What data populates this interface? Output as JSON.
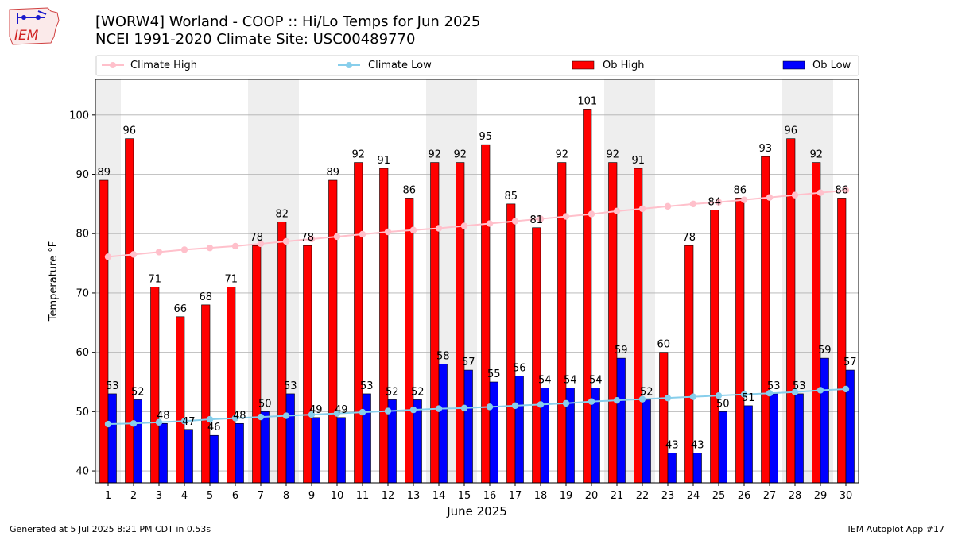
{
  "header": {
    "title_line1": "[WORW4] Worland - COOP :: Hi/Lo Temps for Jun 2025",
    "title_line2": "NCEI 1991-2020 Climate Site: USC00489770",
    "logo_text": "IEM"
  },
  "footer": {
    "left": "Generated at 5 Jul 2025 8:21 PM CDT in 0.53s",
    "right": "IEM Autoplot App #17"
  },
  "colors": {
    "ob_high": "#ff0000",
    "ob_low": "#0000ff",
    "climate_high": "#ffc0cb",
    "climate_low": "#87ceeb",
    "weekend_band": "#eeeeee",
    "grid": "#b0b0b0"
  },
  "chart_data": {
    "type": "bar",
    "xlabel": "June 2025",
    "ylabel": "Temperature °F",
    "ylim": [
      38,
      106
    ],
    "yticks": [
      40,
      50,
      60,
      70,
      80,
      90,
      100
    ],
    "grid": "horizontal",
    "legend_position": "top, above plot",
    "categories": [
      1,
      2,
      3,
      4,
      5,
      6,
      7,
      8,
      9,
      10,
      11,
      12,
      13,
      14,
      15,
      16,
      17,
      18,
      19,
      20,
      21,
      22,
      23,
      24,
      25,
      26,
      27,
      28,
      29,
      30
    ],
    "weekend_days": [
      1,
      7,
      8,
      14,
      15,
      21,
      22,
      28,
      29
    ],
    "series": [
      {
        "name": "Ob High",
        "kind": "bar",
        "values": [
          89,
          96,
          71,
          66,
          68,
          71,
          78,
          82,
          78,
          89,
          92,
          91,
          86,
          92,
          92,
          95,
          85,
          81,
          92,
          101,
          92,
          91,
          60,
          78,
          84,
          86,
          93,
          96,
          92,
          86
        ]
      },
      {
        "name": "Ob Low",
        "kind": "bar",
        "values": [
          53,
          52,
          48,
          47,
          46,
          48,
          50,
          53,
          49,
          49,
          53,
          52,
          52,
          58,
          57,
          55,
          56,
          54,
          54,
          54,
          59,
          52,
          43,
          43,
          50,
          51,
          53,
          53,
          59,
          57
        ]
      },
      {
        "name": "Climate High",
        "kind": "line",
        "values": [
          76.1,
          76.5,
          76.9,
          77.3,
          77.6,
          77.9,
          78.3,
          78.7,
          79.1,
          79.5,
          79.9,
          80.3,
          80.6,
          80.9,
          81.3,
          81.7,
          82.1,
          82.5,
          82.9,
          83.3,
          83.8,
          84.2,
          84.6,
          85.0,
          85.3,
          85.7,
          86.1,
          86.5,
          86.9,
          87.3
        ]
      },
      {
        "name": "Climate Low",
        "kind": "line",
        "values": [
          47.9,
          48.0,
          48.2,
          48.4,
          48.7,
          48.9,
          49.1,
          49.3,
          49.5,
          49.7,
          49.9,
          50.1,
          50.3,
          50.5,
          50.6,
          50.8,
          51.0,
          51.2,
          51.4,
          51.7,
          51.9,
          52.1,
          52.3,
          52.5,
          52.7,
          52.9,
          53.1,
          53.3,
          53.6,
          53.8
        ]
      }
    ]
  }
}
